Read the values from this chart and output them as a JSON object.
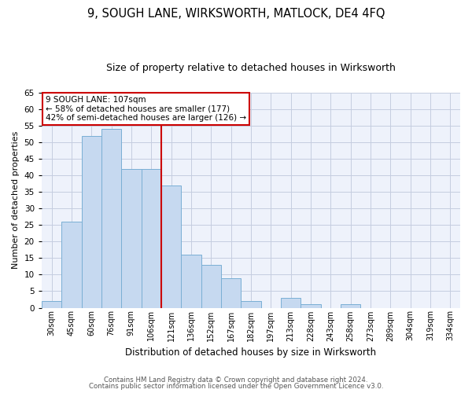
{
  "title": "9, SOUGH LANE, WIRKSWORTH, MATLOCK, DE4 4FQ",
  "subtitle": "Size of property relative to detached houses in Wirksworth",
  "xlabel": "Distribution of detached houses by size in Wirksworth",
  "ylabel": "Number of detached properties",
  "categories": [
    "30sqm",
    "45sqm",
    "60sqm",
    "76sqm",
    "91sqm",
    "106sqm",
    "121sqm",
    "136sqm",
    "152sqm",
    "167sqm",
    "182sqm",
    "197sqm",
    "213sqm",
    "228sqm",
    "243sqm",
    "258sqm",
    "273sqm",
    "289sqm",
    "304sqm",
    "319sqm",
    "334sqm"
  ],
  "values": [
    2,
    26,
    52,
    54,
    42,
    42,
    37,
    16,
    13,
    9,
    2,
    0,
    3,
    1,
    0,
    1,
    0,
    0,
    0,
    0,
    0
  ],
  "bar_color": "#c6d9f0",
  "bar_edge_color": "#7aafd4",
  "vline_x_index": 5,
  "vline_color": "#cc0000",
  "annotation_text": "9 SOUGH LANE: 107sqm\n← 58% of detached houses are smaller (177)\n42% of semi-detached houses are larger (126) →",
  "annotation_box_color": "#ffffff",
  "annotation_box_edge": "#cc0000",
  "ylim": [
    0,
    65
  ],
  "yticks": [
    0,
    5,
    10,
    15,
    20,
    25,
    30,
    35,
    40,
    45,
    50,
    55,
    60,
    65
  ],
  "footer1": "Contains HM Land Registry data © Crown copyright and database right 2024.",
  "footer2": "Contains public sector information licensed under the Open Government Licence v3.0.",
  "bg_color": "#eef2fb",
  "grid_color": "#c5cde0",
  "title_fontsize": 10.5,
  "subtitle_fontsize": 9
}
